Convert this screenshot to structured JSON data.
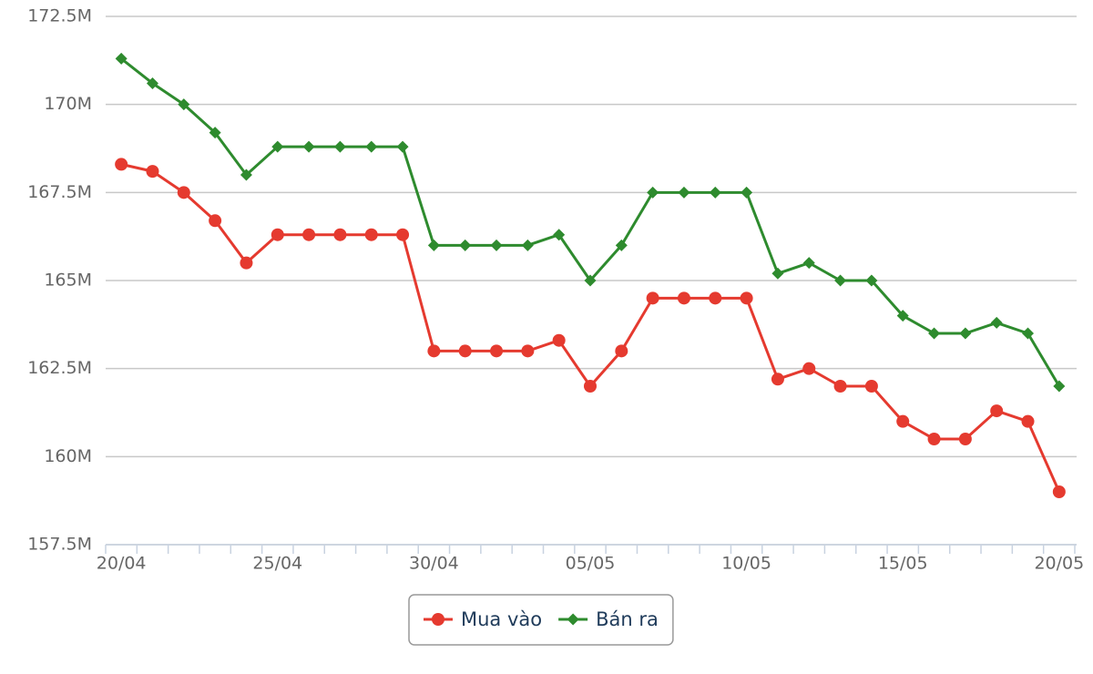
{
  "chart_data": {
    "type": "line",
    "categories": [
      "20/04",
      null,
      null,
      null,
      null,
      "25/04",
      null,
      null,
      null,
      null,
      "30/04",
      null,
      null,
      null,
      null,
      "05/05",
      null,
      null,
      null,
      null,
      "10/05",
      null,
      null,
      null,
      null,
      "15/05",
      null,
      null,
      null,
      null,
      "20/05"
    ],
    "series": [
      {
        "name": "Mua vào",
        "color": "#e53a2f",
        "marker": "circle",
        "values": [
          168.3,
          168.1,
          167.5,
          166.7,
          165.5,
          166.3,
          166.3,
          166.3,
          166.3,
          166.3,
          163.0,
          163.0,
          163.0,
          163.0,
          163.3,
          162.0,
          163.0,
          164.5,
          164.5,
          164.5,
          164.5,
          162.2,
          162.5,
          162.0,
          162.0,
          161.0,
          160.5,
          160.5,
          161.3,
          161.0,
          159.0
        ]
      },
      {
        "name": "Bán ra",
        "color": "#2e8b2e",
        "marker": "diamond",
        "values": [
          171.3,
          170.6,
          170.0,
          169.2,
          168.0,
          168.8,
          168.8,
          168.8,
          168.8,
          168.8,
          166.0,
          166.0,
          166.0,
          166.0,
          166.3,
          165.0,
          166.0,
          167.5,
          167.5,
          167.5,
          167.5,
          165.2,
          165.5,
          165.0,
          165.0,
          164.0,
          163.5,
          163.5,
          163.8,
          163.5,
          162.0
        ]
      }
    ],
    "ylim": [
      157.5,
      172.5
    ],
    "yticks": [
      {
        "value": 157.5,
        "label": "157.5M"
      },
      {
        "value": 160,
        "label": "160M"
      },
      {
        "value": 162.5,
        "label": "162.5M"
      },
      {
        "value": 165,
        "label": "165M"
      },
      {
        "value": 167.5,
        "label": "167.5M"
      },
      {
        "value": 170,
        "label": "170M"
      },
      {
        "value": 172.5,
        "label": "172.5M"
      }
    ],
    "grid": true,
    "legend": "bottom"
  }
}
